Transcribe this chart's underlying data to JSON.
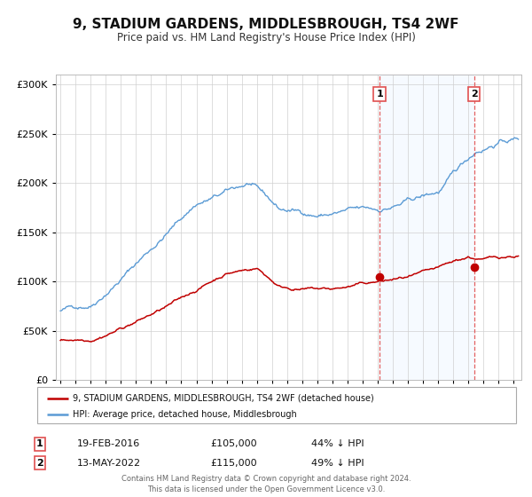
{
  "title": "9, STADIUM GARDENS, MIDDLESBROUGH, TS4 2WF",
  "subtitle": "Price paid vs. HM Land Registry's House Price Index (HPI)",
  "title_fontsize": 11,
  "subtitle_fontsize": 8.5,
  "xlim": [
    1994.7,
    2025.5
  ],
  "ylim": [
    0,
    310000
  ],
  "yticks": [
    0,
    50000,
    100000,
    150000,
    200000,
    250000,
    300000
  ],
  "hpi_color": "#5b9bd5",
  "price_color": "#c00000",
  "marker1_date": 2016.12,
  "marker1_price": 105000,
  "marker2_date": 2022.37,
  "marker2_price": 115000,
  "vline_color": "#e05050",
  "legend_label_price": "9, STADIUM GARDENS, MIDDLESBROUGH, TS4 2WF (detached house)",
  "legend_label_hpi": "HPI: Average price, detached house, Middlesbrough",
  "footer": "Contains HM Land Registry data © Crown copyright and database right 2024.\nThis data is licensed under the Open Government Licence v3.0.",
  "bg_color": "#ffffff",
  "plot_bg_color": "#ffffff",
  "grid_color": "#d0d0d0",
  "shade_color": "#ddeeff"
}
